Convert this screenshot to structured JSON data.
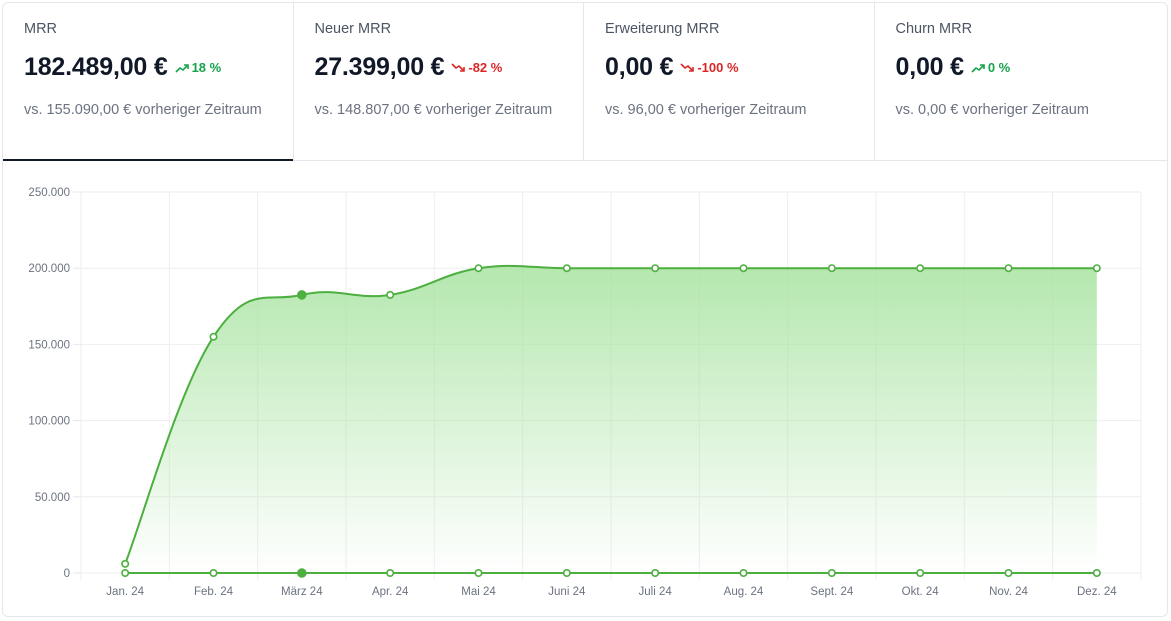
{
  "kpis": [
    {
      "title": "MRR",
      "value": "182.489,00 €",
      "delta": "18 %",
      "trend": "up",
      "compare": "vs. 155.090,00 € vorheriger Zeitraum",
      "active": true
    },
    {
      "title": "Neuer MRR",
      "value": "27.399,00 €",
      "delta": "-82 %",
      "trend": "down",
      "compare": "vs. 148.807,00 € vorheriger Zeitraum",
      "active": false
    },
    {
      "title": "Erweiterung MRR",
      "value": "0,00 €",
      "delta": "-100 %",
      "trend": "down",
      "compare": "vs. 96,00 € vorheriger Zeitraum",
      "active": false
    },
    {
      "title": "Churn MRR",
      "value": "0,00 €",
      "delta": "0 %",
      "trend": "up",
      "compare": "vs. 0,00 € vorheriger Zeitraum",
      "active": false
    }
  ],
  "colors": {
    "up": "#16a34a",
    "down": "#dc2626",
    "series": "#4caf3f",
    "fill_top": "#a7e3a0"
  },
  "chart_data": {
    "type": "area",
    "categories": [
      "Jan. 24",
      "Feb. 24",
      "März 24",
      "Apr. 24",
      "Mai 24",
      "Juni 24",
      "Juli 24",
      "Aug. 24",
      "Sept. 24",
      "Okt. 24",
      "Nov. 24",
      "Dez. 24"
    ],
    "series": [
      {
        "values": [
          6000,
          155000,
          182489,
          182489,
          200000,
          200000,
          200000,
          200000,
          200000,
          200000,
          200000,
          200000
        ]
      },
      {
        "values": [
          0,
          0,
          0,
          0,
          0,
          0,
          0,
          0,
          0,
          0,
          0,
          0
        ]
      }
    ],
    "highlight_index": 2,
    "ylim": [
      0,
      250000
    ],
    "yticks": [
      "0",
      "50.000",
      "100.000",
      "150.000",
      "200.000",
      "250.000"
    ],
    "ytick_values": [
      0,
      50000,
      100000,
      150000,
      200000,
      250000
    ],
    "grid": true
  }
}
